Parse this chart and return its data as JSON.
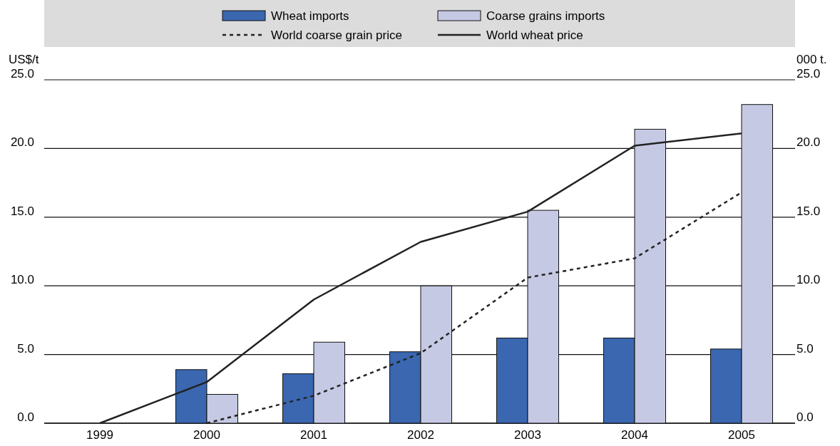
{
  "chart_data": {
    "type": "bar",
    "categories": [
      "1999",
      "2000",
      "2001",
      "2002",
      "2003",
      "2004",
      "2005"
    ],
    "ylabel": "US$/t",
    "y2label": "000 t.",
    "ylim": [
      0,
      25
    ],
    "yticks": [
      {
        "value": 0,
        "label": "0.0"
      },
      {
        "value": 5,
        "label": "5.0"
      },
      {
        "value": 10,
        "label": "10.0"
      },
      {
        "value": 15,
        "label": "15.0"
      },
      {
        "value": 20,
        "label": "20.0"
      },
      {
        "value": 25,
        "label": "25.0"
      }
    ],
    "y2lim": [
      0,
      25
    ],
    "y2ticks": [
      {
        "value": 0,
        "label": "0.0"
      },
      {
        "value": 5,
        "label": "5.0"
      },
      {
        "value": 10,
        "label": "10.0"
      },
      {
        "value": 15,
        "label": "15.0"
      },
      {
        "value": 20,
        "label": "20.0"
      },
      {
        "value": 25,
        "label": "25.0"
      }
    ],
    "grid": "y",
    "legend": "top",
    "series": [
      {
        "name": "Wheat imports",
        "color": "#3a67b0",
        "values": [
          null,
          3.9,
          3.6,
          5.2,
          6.2,
          6.2,
          5.4
        ]
      },
      {
        "name": "Coarse grains imports",
        "color": "#c5c9e3",
        "values": [
          null,
          2.1,
          5.9,
          10.0,
          15.5,
          21.4,
          23.2
        ]
      },
      {
        "name": "World coarse grain price",
        "type": "line",
        "line_style": "dashed",
        "color": "#222222",
        "values": [
          null,
          0,
          2.0,
          5.1,
          10.6,
          12.0,
          16.8
        ]
      },
      {
        "name": "World wheat price",
        "type": "line",
        "line_style": "solid",
        "color": "#222222",
        "values": [
          0,
          3.0,
          9.0,
          13.2,
          15.4,
          20.2,
          21.1
        ]
      }
    ]
  }
}
